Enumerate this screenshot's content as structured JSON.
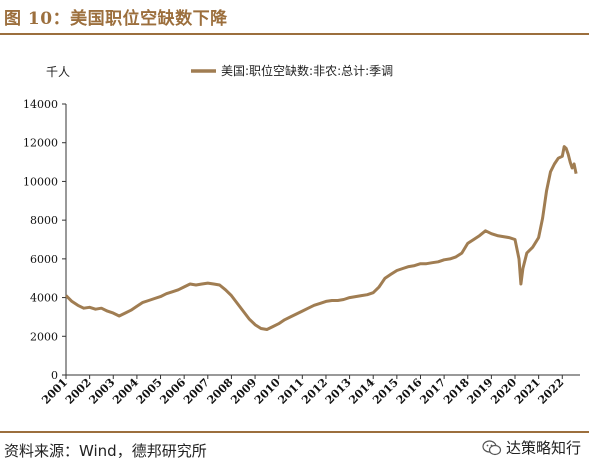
{
  "figure_title": "图 10：美国职位空缺数下降",
  "source_note": "资料来源：Wind，德邦研究所",
  "watermark": {
    "icon": "wechat-icon",
    "text": "达策略知行"
  },
  "colors": {
    "accent": "#9c6f3d",
    "series": "#a07d52"
  },
  "chart_data": {
    "type": "line",
    "title": "",
    "ylabel": "千人",
    "xlabel": "",
    "ylim": [
      0,
      14000
    ],
    "yticks": [
      0,
      2000,
      4000,
      6000,
      8000,
      10000,
      12000,
      14000
    ],
    "xticks": [
      "2001",
      "2002",
      "2003",
      "2004",
      "2005",
      "2006",
      "2007",
      "2008",
      "2009",
      "2010",
      "2011",
      "2012",
      "2013",
      "2014",
      "2015",
      "2016",
      "2017",
      "2018",
      "2019",
      "2020",
      "2021",
      "2022"
    ],
    "grid": false,
    "legend_position": "top",
    "series": [
      {
        "name": "美国:职位空缺数:非农:总计:季调",
        "x": [
          "2001-01",
          "2001-04",
          "2001-07",
          "2001-10",
          "2002-01",
          "2002-04",
          "2002-07",
          "2002-10",
          "2003-01",
          "2003-04",
          "2003-07",
          "2003-10",
          "2004-01",
          "2004-04",
          "2004-07",
          "2004-10",
          "2005-01",
          "2005-04",
          "2005-07",
          "2005-10",
          "2006-01",
          "2006-04",
          "2006-07",
          "2006-10",
          "2007-01",
          "2007-04",
          "2007-07",
          "2007-10",
          "2008-01",
          "2008-04",
          "2008-07",
          "2008-10",
          "2009-01",
          "2009-04",
          "2009-07",
          "2009-10",
          "2010-01",
          "2010-04",
          "2010-07",
          "2010-10",
          "2011-01",
          "2011-04",
          "2011-07",
          "2011-10",
          "2012-01",
          "2012-04",
          "2012-07",
          "2012-10",
          "2013-01",
          "2013-04",
          "2013-07",
          "2013-10",
          "2014-01",
          "2014-04",
          "2014-07",
          "2014-10",
          "2015-01",
          "2015-04",
          "2015-07",
          "2015-10",
          "2016-01",
          "2016-04",
          "2016-07",
          "2016-10",
          "2017-01",
          "2017-04",
          "2017-07",
          "2017-10",
          "2018-01",
          "2018-04",
          "2018-07",
          "2018-10",
          "2019-01",
          "2019-04",
          "2019-07",
          "2019-10",
          "2020-01",
          "2020-03",
          "2020-04",
          "2020-05",
          "2020-07",
          "2020-10",
          "2021-01",
          "2021-03",
          "2021-05",
          "2021-07",
          "2021-09",
          "2021-11",
          "2022-01",
          "2022-02",
          "2022-03",
          "2022-04",
          "2022-05",
          "2022-06",
          "2022-07",
          "2022-08"
        ],
        "values": [
          4100,
          3800,
          3600,
          3450,
          3500,
          3400,
          3450,
          3300,
          3200,
          3050,
          3200,
          3350,
          3550,
          3750,
          3850,
          3950,
          4050,
          4200,
          4300,
          4400,
          4550,
          4700,
          4650,
          4700,
          4750,
          4700,
          4650,
          4400,
          4100,
          3700,
          3300,
          2900,
          2600,
          2400,
          2350,
          2500,
          2650,
          2850,
          3000,
          3150,
          3300,
          3450,
          3600,
          3700,
          3800,
          3850,
          3850,
          3900,
          4000,
          4050,
          4100,
          4150,
          4250,
          4550,
          5000,
          5200,
          5400,
          5500,
          5600,
          5650,
          5750,
          5750,
          5800,
          5850,
          5950,
          6000,
          6100,
          6300,
          6800,
          7000,
          7200,
          7450,
          7300,
          7200,
          7150,
          7100,
          7000,
          6000,
          4700,
          5500,
          6300,
          6600,
          7100,
          8100,
          9500,
          10500,
          10900,
          11200,
          11300,
          11800,
          11700,
          11400,
          11000,
          10700,
          10900,
          10400
        ]
      }
    ]
  }
}
